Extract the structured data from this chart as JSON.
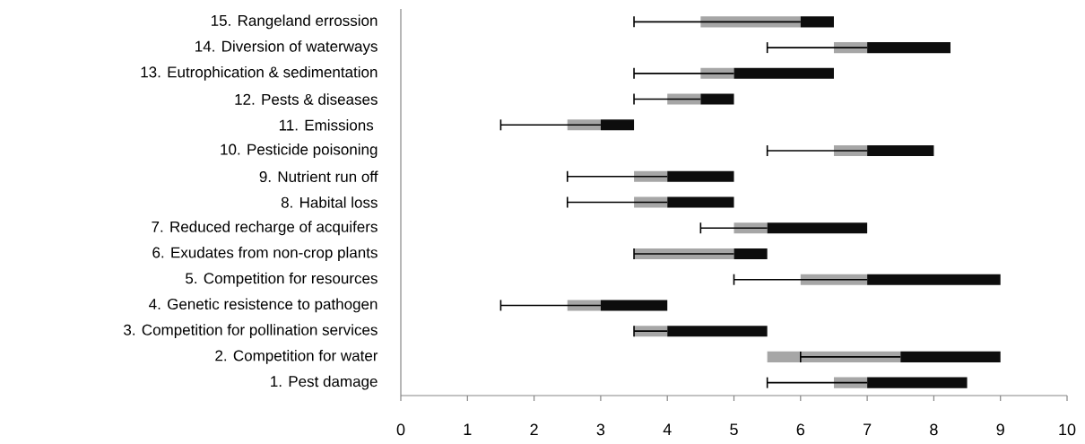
{
  "chart_data": {
    "type": "bar",
    "orientation": "horizontal",
    "categories": [
      "15. Rangeland errossion",
      "14. Diversion of waterways",
      "13. Eutrophication & sedimentation",
      "12. Pests & diseases",
      "11. Emissions ",
      "10. Pesticide poisoning",
      "9. Nutrient run off",
      "8. Habital loss",
      "7. Reduced recharge of acquifers",
      "6. Exudates from non-crop plants",
      "5. Competition for resources",
      "4. Genetic resistence to pathogen",
      "3. Competition for pollination services",
      "2. Competition for water",
      "1. Pest damage"
    ],
    "series": [
      {
        "color": "#a6a6a6",
        "base": [
          4.5,
          6.5,
          4.5,
          4,
          2.5,
          6.5,
          3.5,
          3.5,
          5,
          3.5,
          6,
          2.5,
          3.5,
          5.5,
          6.5
        ],
        "values": [
          1.5,
          0.5,
          0.5,
          0.5,
          0.5,
          0.5,
          0.5,
          0.5,
          0.5,
          1.5,
          1,
          0.5,
          0.5,
          2,
          0.5
        ],
        "errors": [
          [
            3.5,
            6
          ],
          [
            5.5,
            7
          ],
          [
            3.5,
            5
          ],
          [
            3.5,
            4.5
          ],
          [
            1.5,
            3
          ],
          [
            5.5,
            7
          ],
          [
            2.5,
            4
          ],
          [
            2.5,
            4
          ],
          [
            4.5,
            5.5
          ],
          [
            3.5,
            5
          ],
          [
            5,
            7
          ],
          [
            1.5,
            3
          ],
          [
            3.5,
            4
          ],
          [
            6,
            7.5
          ],
          [
            5.5,
            7
          ]
        ]
      },
      {
        "color": "#0d0d0d",
        "base": [
          6,
          7,
          5,
          4.5,
          3,
          7,
          4,
          4,
          5.5,
          5,
          7,
          3,
          4,
          7.5,
          7
        ],
        "values": [
          0.5,
          1.25,
          1.5,
          0.5,
          0.5,
          1,
          1,
          1,
          1.5,
          0.5,
          2,
          1,
          1.5,
          1.5,
          1.5
        ]
      }
    ],
    "xlim": [
      0,
      10
    ],
    "xticks": [
      0,
      1,
      2,
      3,
      4,
      5,
      6,
      7,
      8,
      9,
      10
    ]
  }
}
